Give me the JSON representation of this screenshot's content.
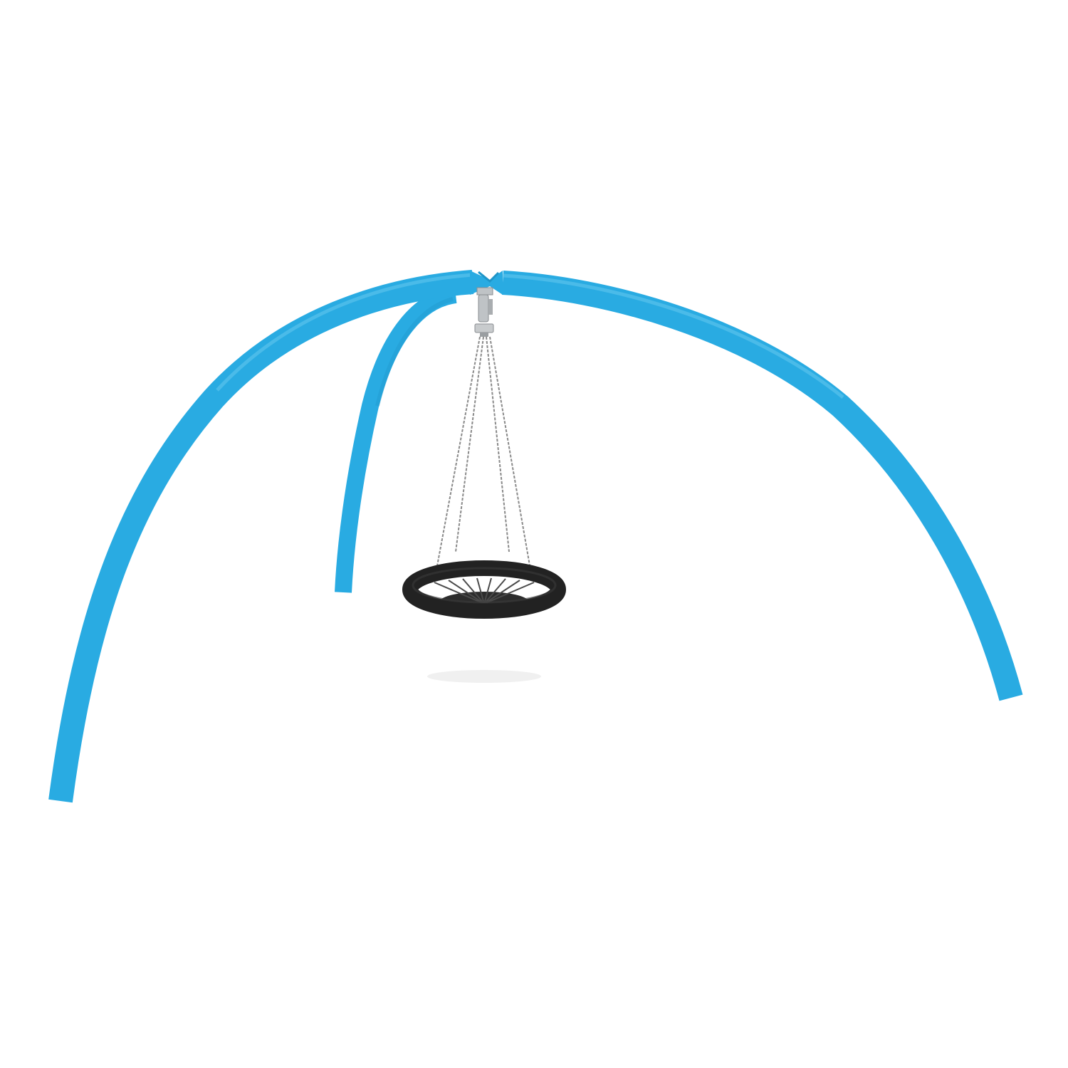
{
  "scene": {
    "background": "#ffffff",
    "colors": {
      "frame_blue": "#29ABE2",
      "frame_blue_shade": "#1F95C8",
      "frame_blue_highlight": "#6CCBF0",
      "seat_black": "#222222",
      "seat_net": "#3a3a3a",
      "chain_grey": "#8a8a8a",
      "swivel_metal": "#bfc3c6",
      "shadow": "#e9e9e9"
    },
    "parts": {
      "left_arch_leg": "tube-arch",
      "right_arch_leg": "tube-arch",
      "rear_arch_leg": "tube-arch",
      "top_joint": "tube-joint",
      "swivel_bearing": "swivel-hook",
      "chains": "chain",
      "nest_seat": "bird-nest-swing-seat",
      "ground_shadow": "shadow"
    },
    "chain_count": 4
  }
}
